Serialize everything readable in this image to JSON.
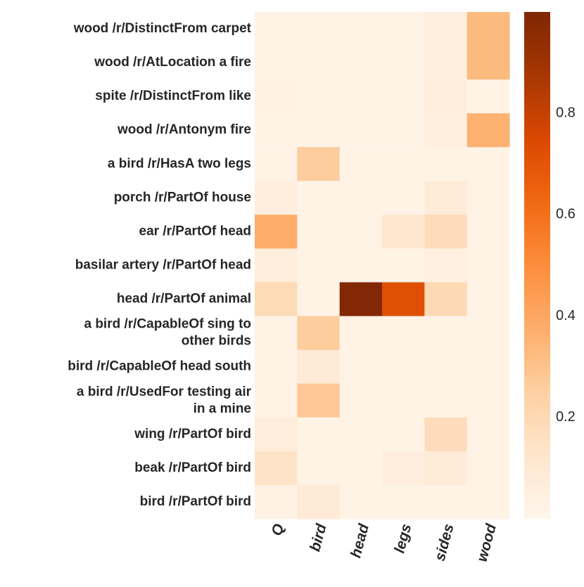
{
  "chart_data": {
    "type": "heatmap",
    "title": "",
    "xlabel": "",
    "ylabel": "",
    "x_categories": [
      "Q",
      "bird",
      "head",
      "legs",
      "sides",
      "wood"
    ],
    "y_categories": [
      [
        "wood /r/DistinctFrom carpet"
      ],
      [
        "wood /r/AtLocation a fire"
      ],
      [
        "spite /r/DistinctFrom like"
      ],
      [
        "wood /r/Antonym fire"
      ],
      [
        "a bird /r/HasA two legs"
      ],
      [
        "porch /r/PartOf house"
      ],
      [
        "ear /r/PartOf head"
      ],
      [
        "basilar artery /r/PartOf head"
      ],
      [
        "head /r/PartOf animal"
      ],
      [
        "a bird /r/CapableOf sing to",
        "other birds"
      ],
      [
        "bird /r/CapableOf head south"
      ],
      [
        "a bird /r/UsedFor testing air",
        "in a mine"
      ],
      [
        "wing /r/PartOf bird"
      ],
      [
        "beak /r/PartOf bird"
      ],
      [
        "bird /r/PartOf bird"
      ]
    ],
    "values": [
      [
        0.02,
        0.02,
        0.02,
        0.02,
        0.05,
        0.33
      ],
      [
        0.02,
        0.02,
        0.02,
        0.02,
        0.05,
        0.33
      ],
      [
        0.03,
        0.02,
        0.02,
        0.02,
        0.07,
        0.02
      ],
      [
        0.02,
        0.02,
        0.02,
        0.02,
        0.05,
        0.36
      ],
      [
        0.02,
        0.26,
        0.02,
        0.02,
        0.02,
        0.02
      ],
      [
        0.06,
        0.02,
        0.02,
        0.02,
        0.08,
        0.02
      ],
      [
        0.38,
        0.02,
        0.02,
        0.12,
        0.18,
        0.02
      ],
      [
        0.07,
        0.02,
        0.02,
        0.02,
        0.04,
        0.02
      ],
      [
        0.19,
        0.02,
        0.99,
        0.72,
        0.2,
        0.02
      ],
      [
        0.02,
        0.26,
        0.02,
        0.02,
        0.02,
        0.02
      ],
      [
        0.02,
        0.09,
        0.02,
        0.02,
        0.02,
        0.02
      ],
      [
        0.02,
        0.28,
        0.02,
        0.02,
        0.02,
        0.02
      ],
      [
        0.07,
        0.02,
        0.02,
        0.02,
        0.18,
        0.02
      ],
      [
        0.14,
        0.02,
        0.02,
        0.06,
        0.08,
        0.02
      ],
      [
        0.03,
        0.09,
        0.02,
        0.02,
        0.02,
        0.02
      ]
    ],
    "colorbar": {
      "min": 0.0,
      "max": 1.0,
      "ticks": [
        0.2,
        0.4,
        0.6,
        0.8
      ],
      "tick_labels": [
        "0.2",
        "0.4",
        "0.6",
        "0.8"
      ],
      "colormap": "Oranges"
    },
    "grid": false
  }
}
